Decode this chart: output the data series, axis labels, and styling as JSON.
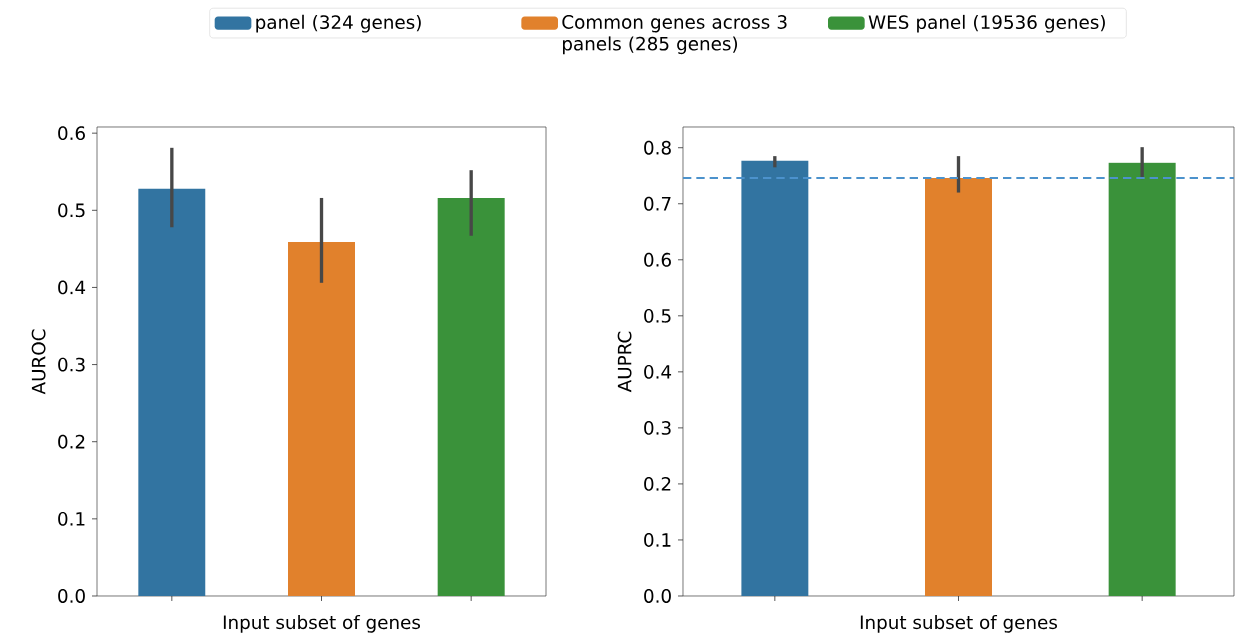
{
  "chart_data": [
    {
      "type": "bar",
      "xlabel": "Input subset of genes",
      "ylabel": "AUROC",
      "categories": [
        null,
        null,
        null
      ],
      "values": [
        0.528,
        0.459,
        0.516
      ],
      "colors": [
        "#3274a1",
        "#e1812c",
        "#3a923a"
      ],
      "errors": [
        [
          0.478,
          0.581
        ],
        [
          0.406,
          0.516
        ],
        [
          0.467,
          0.552
        ]
      ],
      "ylim": [
        0,
        0.608
      ],
      "yticks": [
        {
          "value": 0,
          "label": "0.0"
        },
        0.1,
        0.2,
        0.3,
        0.4,
        0.5,
        0.6
      ],
      "tick_labels": "y",
      "grid": false
    },
    {
      "type": "bar",
      "xlabel": "Input subset of genes",
      "ylabel": "AUPRC",
      "categories": [
        null,
        null,
        null
      ],
      "series": [
        {
          "name": "panel (324 genes)",
          "color": "#3274a1",
          "values": [
            0.777,
            null,
            null
          ],
          "errors": [
            [
              0.765,
              0.785
            ],
            null,
            null
          ]
        },
        {
          "name": "Common genes across 3 panels (285 genes)",
          "color": "#e1812c",
          "values": [
            null,
            0.746,
            null
          ],
          "errors": [
            null,
            [
              0.72,
              0.785
            ],
            null
          ]
        },
        {
          "name": "WES panel (19536 genes)",
          "color": "#3a923a",
          "values": [
            null,
            null,
            0.773
          ],
          "errors": [
            null,
            null,
            [
              0.744,
              0.801
            ]
          ]
        }
      ],
      "ylim": [
        0,
        0.837
      ],
      "yticks": [
        {
          "value": 0,
          "label": "0.0"
        },
        0.1,
        0.2,
        0.3,
        0.4,
        0.5,
        0.6,
        0.7,
        0.8
      ],
      "tick_labels": "y",
      "legend": "top",
      "grid": false,
      "ref_lines": [
        {
          "axis": "y",
          "value": 0.746,
          "color": "#4c92cc",
          "line_style": "dashed"
        }
      ]
    }
  ]
}
